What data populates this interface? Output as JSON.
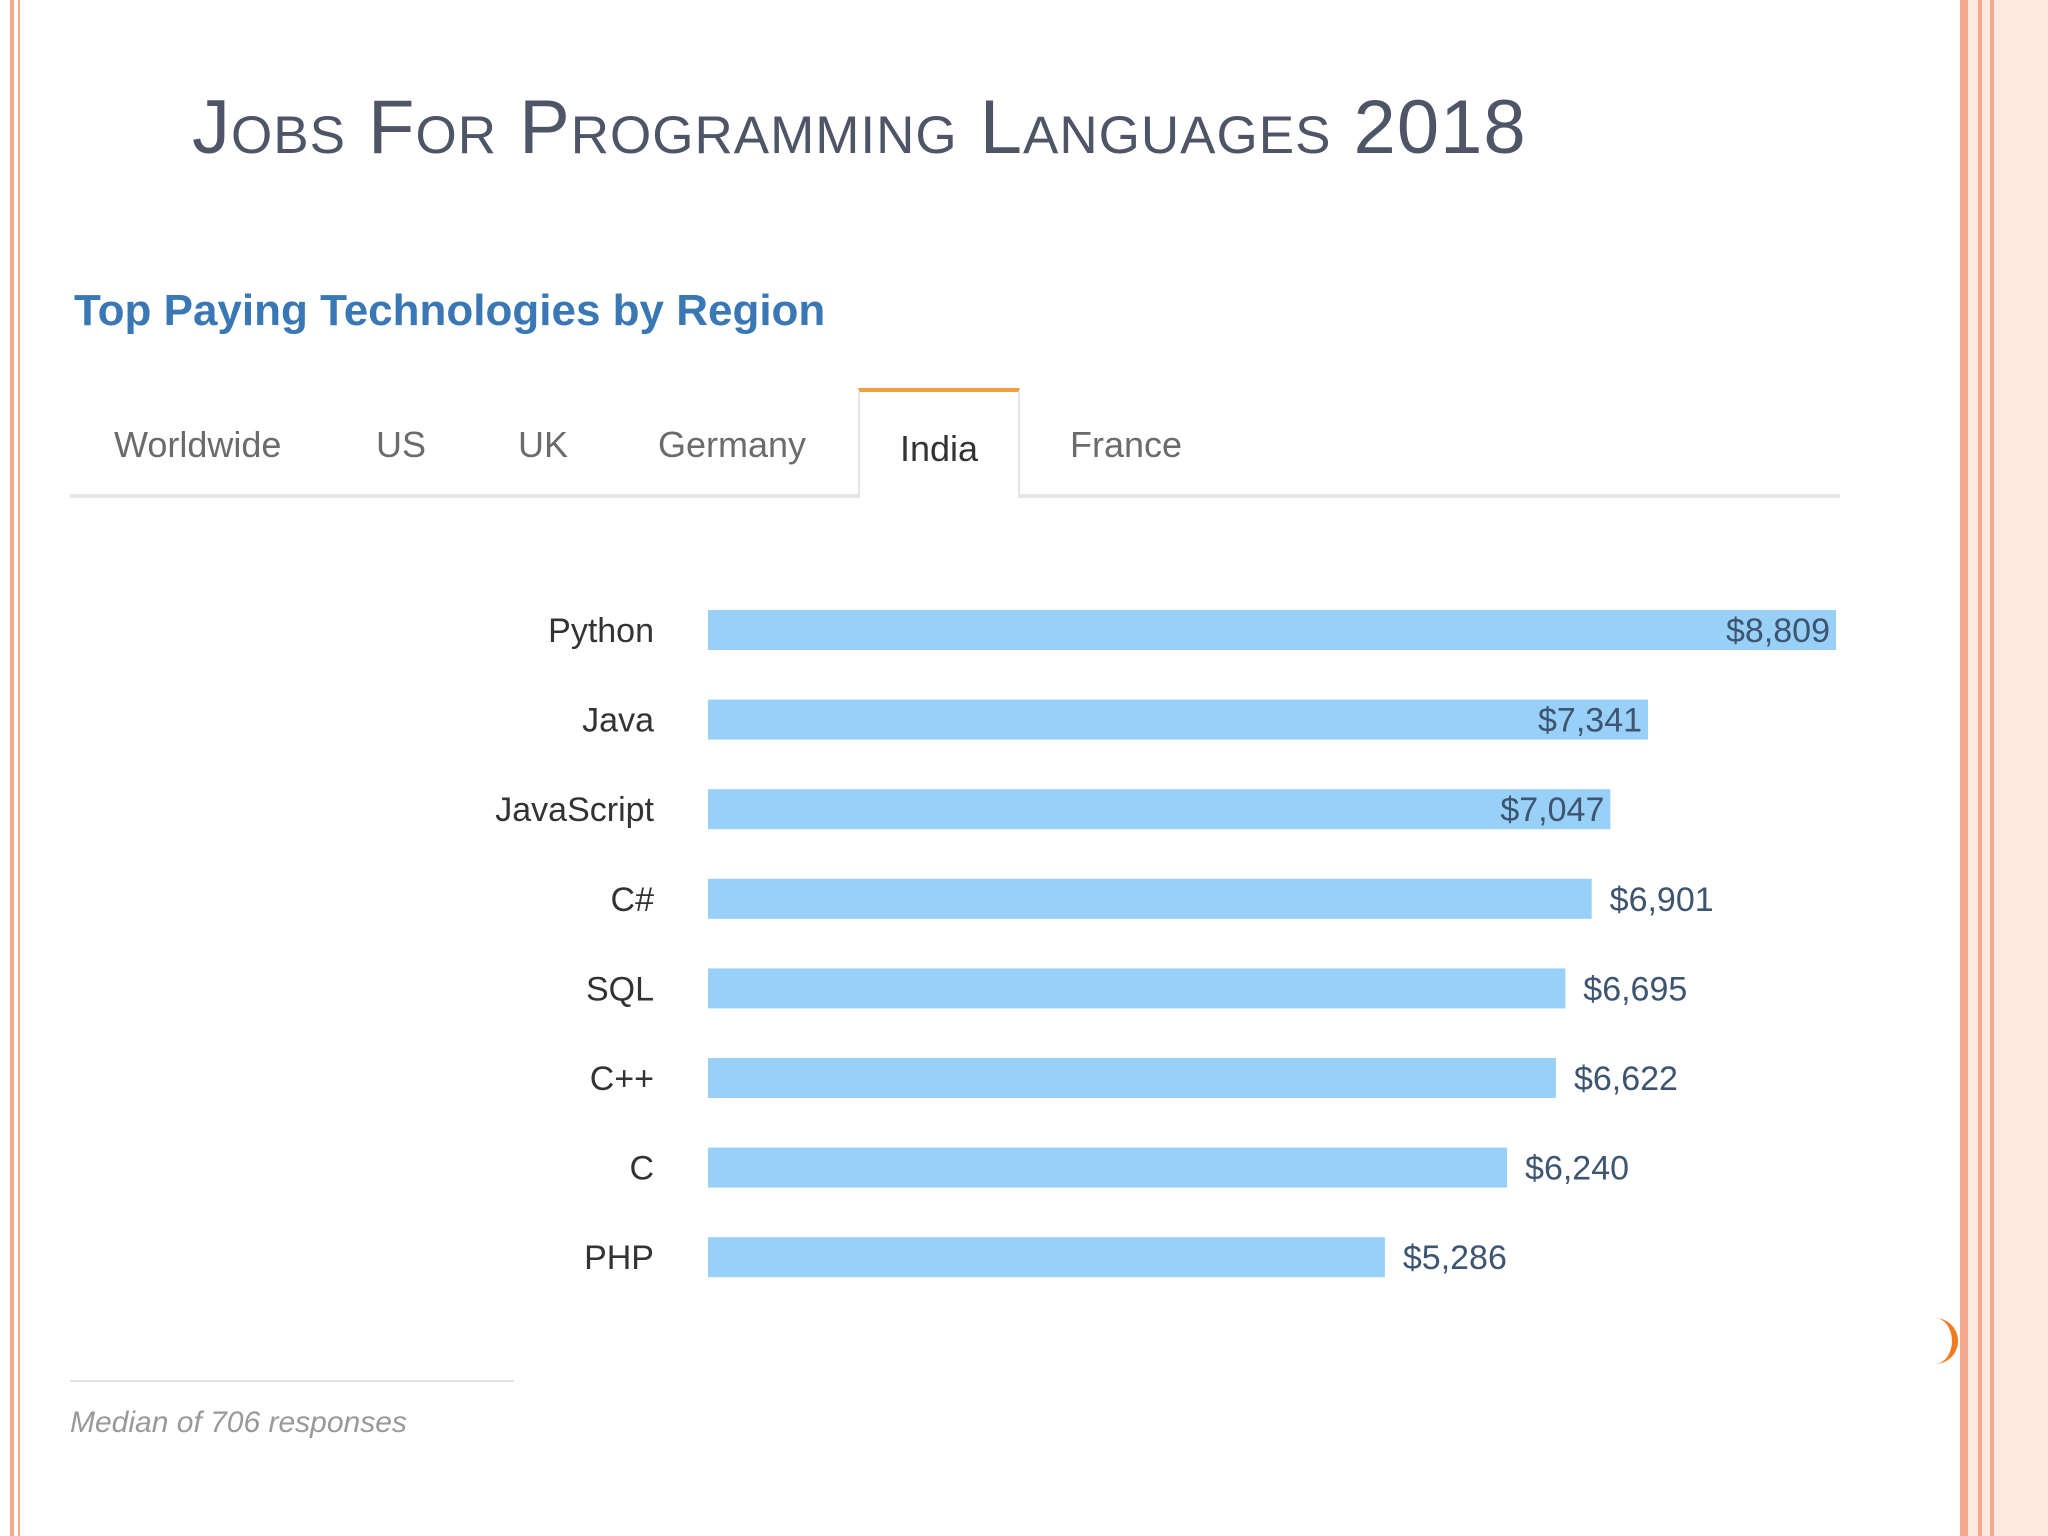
{
  "slide": {
    "title": "Jobs For Programming Languages 2018"
  },
  "widget": {
    "title": "Top Paying Technologies by Region",
    "tabs": [
      "Worldwide",
      "US",
      "UK",
      "Germany",
      "India",
      "France"
    ],
    "active_tab": "India",
    "footnote": "Median of 706 responses"
  },
  "colors": {
    "bar": "#99d0f7",
    "title_blue": "#3a78b5",
    "tab_accent": "#f0a040",
    "slide_border": "#f5a98c"
  },
  "chart_data": {
    "type": "bar",
    "orientation": "horizontal",
    "categories": [
      "Python",
      "Java",
      "JavaScript",
      "C#",
      "SQL",
      "C++",
      "C",
      "PHP"
    ],
    "values": [
      8809,
      7341,
      7047,
      6901,
      6695,
      6622,
      6240,
      5286
    ],
    "value_labels": [
      "$8,809",
      "$7,341",
      "$7,047",
      "$6,901",
      "$6,695",
      "$6,622",
      "$6,240",
      "$5,286"
    ],
    "xlim": [
      0,
      8809
    ],
    "grid": false
  }
}
